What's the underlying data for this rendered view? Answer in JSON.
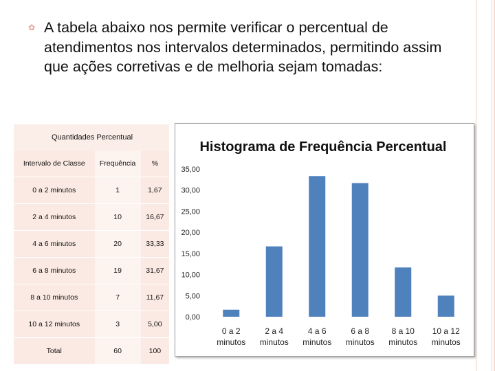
{
  "slide": {
    "bullet_icon": "flourish-bullet-icon",
    "paragraph": "A tabela abaixo nos permite verificar o percentual de atendimentos nos intervalos determinados, permitindo assim que ações corretivas e de melhoria sejam tomadas:"
  },
  "table": {
    "title": "Quantidades Percentual",
    "headers": [
      "Intervalo de Classe",
      "Frequência",
      "%"
    ],
    "rows": [
      [
        "0 a 2 minutos",
        "1",
        "1,67"
      ],
      [
        "2 a 4 minutos",
        "10",
        "16,67"
      ],
      [
        "4 a 6 minutos",
        "20",
        "33,33"
      ],
      [
        "6 a 8 minutos",
        "19",
        "31,67"
      ],
      [
        "8 a 10 minutos",
        "7",
        "11,67"
      ],
      [
        "10 a 12 minutos",
        "3",
        "5,00"
      ],
      [
        "Total",
        "60",
        "100"
      ]
    ]
  },
  "chart_data": {
    "type": "bar",
    "title": "Histograma de Frequência Percentual",
    "categories": [
      "0 a 2 minutos",
      "2 a 4 minutos",
      "4 a 6 minutos",
      "6 a 8 minutos",
      "8 a 10 minutos",
      "10 a 12 minutos"
    ],
    "category_lines": [
      [
        "0 a 2",
        "minutos"
      ],
      [
        "2 a 4",
        "minutos"
      ],
      [
        "4 a 6",
        "minutos"
      ],
      [
        "6 a 8",
        "minutos"
      ],
      [
        "8 a 10",
        "minutos"
      ],
      [
        "10 a 12",
        "minutos"
      ]
    ],
    "values": [
      1.67,
      16.67,
      33.33,
      31.67,
      11.67,
      5.0
    ],
    "ylim": [
      0,
      35
    ],
    "yticks": [
      "0,00",
      "5,00",
      "10,00",
      "15,00",
      "20,00",
      "25,00",
      "30,00",
      "35,00"
    ],
    "bar_color": "#4f81bd",
    "grid": false,
    "legend": "none"
  }
}
